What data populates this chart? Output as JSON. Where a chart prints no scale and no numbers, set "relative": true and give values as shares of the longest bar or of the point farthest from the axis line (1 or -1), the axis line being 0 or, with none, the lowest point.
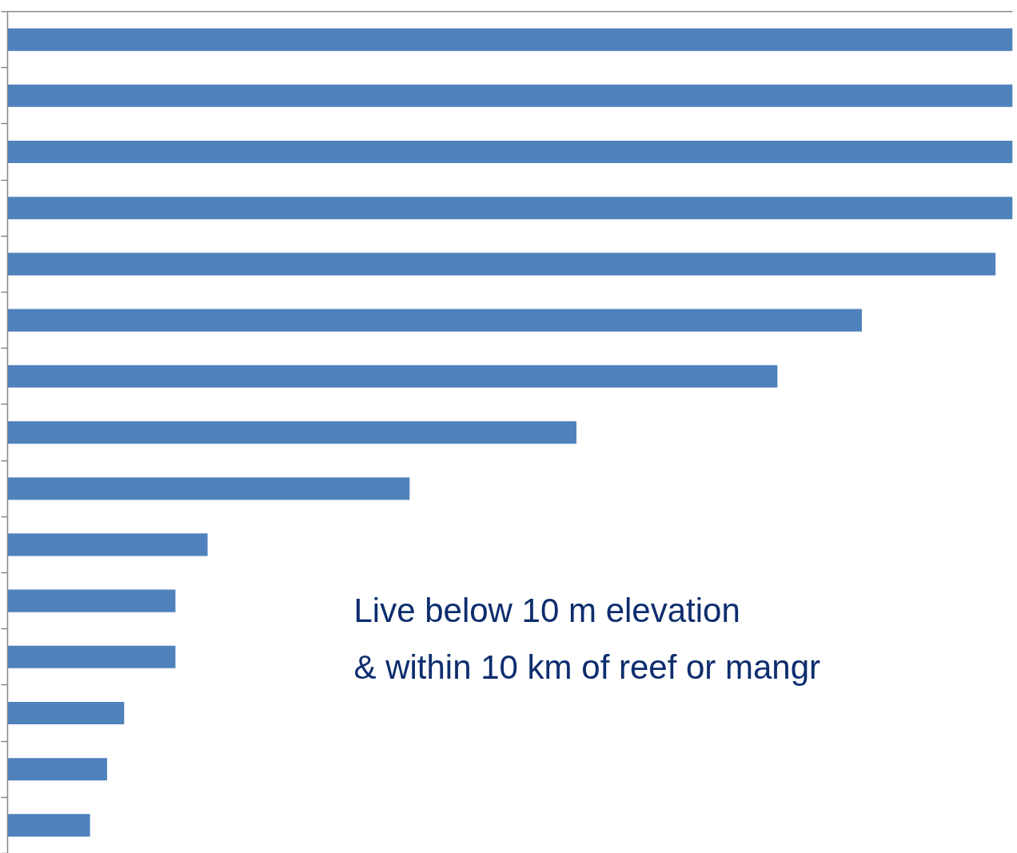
{
  "chart_data": {
    "type": "bar",
    "orientation": "horizontal",
    "relative": true,
    "categories": [
      null,
      null,
      null,
      null,
      null,
      null,
      null,
      null,
      null,
      null,
      null,
      null,
      null,
      null,
      null
    ],
    "values": [
      1.0,
      1.0,
      1.0,
      1.0,
      0.983,
      0.85,
      0.766,
      0.566,
      0.4,
      0.199,
      0.167,
      0.167,
      0.116,
      0.099,
      0.082
    ],
    "color": "#4f81bd",
    "annotations": [
      "Live below 10 m elevation\n& within 10 km of reef or mangr"
    ]
  }
}
